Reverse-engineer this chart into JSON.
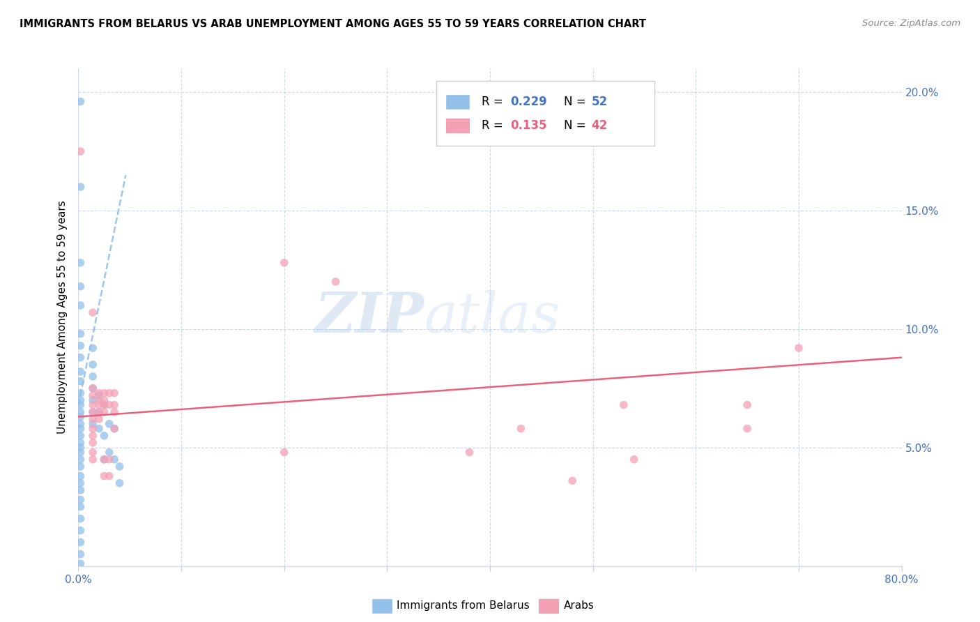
{
  "title": "IMMIGRANTS FROM BELARUS VS ARAB UNEMPLOYMENT AMONG AGES 55 TO 59 YEARS CORRELATION CHART",
  "source": "Source: ZipAtlas.com",
  "ylabel": "Unemployment Among Ages 55 to 59 years",
  "xlim": [
    0.0,
    0.8
  ],
  "ylim": [
    0.0,
    0.21
  ],
  "xticks": [
    0.0,
    0.1,
    0.2,
    0.3,
    0.4,
    0.5,
    0.6,
    0.7,
    0.8
  ],
  "xticklabels": [
    "0.0%",
    "",
    "",
    "",
    "",
    "",
    "",
    "",
    "80.0%"
  ],
  "yticks": [
    0.0,
    0.05,
    0.1,
    0.15,
    0.2
  ],
  "yticklabels": [
    "",
    "5.0%",
    "10.0%",
    "15.0%",
    "20.0%"
  ],
  "legend_r1": "0.229",
  "legend_n1": "52",
  "legend_r2": "0.135",
  "legend_n2": "42",
  "blue_color": "#92C0E8",
  "pink_color": "#F4A0B5",
  "trendline_blue_color": "#92C0E8",
  "trendline_pink_color": "#E8607A",
  "watermark_zip": "ZIP",
  "watermark_atlas": "atlas",
  "blue_scatter": [
    [
      0.002,
      0.196
    ],
    [
      0.002,
      0.16
    ],
    [
      0.002,
      0.128
    ],
    [
      0.002,
      0.118
    ],
    [
      0.002,
      0.11
    ],
    [
      0.002,
      0.098
    ],
    [
      0.002,
      0.093
    ],
    [
      0.002,
      0.088
    ],
    [
      0.002,
      0.082
    ],
    [
      0.002,
      0.078
    ],
    [
      0.002,
      0.073
    ],
    [
      0.002,
      0.07
    ],
    [
      0.002,
      0.068
    ],
    [
      0.002,
      0.065
    ],
    [
      0.002,
      0.063
    ],
    [
      0.002,
      0.06
    ],
    [
      0.002,
      0.058
    ],
    [
      0.002,
      0.055
    ],
    [
      0.002,
      0.052
    ],
    [
      0.002,
      0.05
    ],
    [
      0.002,
      0.048
    ],
    [
      0.002,
      0.045
    ],
    [
      0.002,
      0.042
    ],
    [
      0.002,
      0.038
    ],
    [
      0.002,
      0.035
    ],
    [
      0.002,
      0.032
    ],
    [
      0.002,
      0.028
    ],
    [
      0.002,
      0.025
    ],
    [
      0.002,
      0.02
    ],
    [
      0.002,
      0.015
    ],
    [
      0.002,
      0.01
    ],
    [
      0.002,
      0.005
    ],
    [
      0.002,
      0.001
    ],
    [
      0.014,
      0.092
    ],
    [
      0.014,
      0.085
    ],
    [
      0.014,
      0.08
    ],
    [
      0.014,
      0.075
    ],
    [
      0.014,
      0.07
    ],
    [
      0.014,
      0.065
    ],
    [
      0.014,
      0.06
    ],
    [
      0.02,
      0.072
    ],
    [
      0.02,
      0.065
    ],
    [
      0.02,
      0.058
    ],
    [
      0.025,
      0.068
    ],
    [
      0.025,
      0.055
    ],
    [
      0.025,
      0.045
    ],
    [
      0.03,
      0.06
    ],
    [
      0.03,
      0.048
    ],
    [
      0.035,
      0.058
    ],
    [
      0.035,
      0.045
    ],
    [
      0.04,
      0.042
    ],
    [
      0.04,
      0.035
    ]
  ],
  "pink_scatter": [
    [
      0.002,
      0.175
    ],
    [
      0.014,
      0.107
    ],
    [
      0.014,
      0.075
    ],
    [
      0.014,
      0.072
    ],
    [
      0.014,
      0.068
    ],
    [
      0.014,
      0.065
    ],
    [
      0.014,
      0.062
    ],
    [
      0.014,
      0.058
    ],
    [
      0.014,
      0.055
    ],
    [
      0.014,
      0.052
    ],
    [
      0.014,
      0.048
    ],
    [
      0.014,
      0.045
    ],
    [
      0.02,
      0.073
    ],
    [
      0.02,
      0.07
    ],
    [
      0.02,
      0.068
    ],
    [
      0.02,
      0.065
    ],
    [
      0.02,
      0.062
    ],
    [
      0.025,
      0.073
    ],
    [
      0.025,
      0.07
    ],
    [
      0.025,
      0.068
    ],
    [
      0.025,
      0.065
    ],
    [
      0.025,
      0.045
    ],
    [
      0.025,
      0.038
    ],
    [
      0.03,
      0.073
    ],
    [
      0.03,
      0.068
    ],
    [
      0.03,
      0.045
    ],
    [
      0.03,
      0.038
    ],
    [
      0.035,
      0.073
    ],
    [
      0.035,
      0.068
    ],
    [
      0.035,
      0.065
    ],
    [
      0.035,
      0.058
    ],
    [
      0.2,
      0.128
    ],
    [
      0.2,
      0.048
    ],
    [
      0.25,
      0.12
    ],
    [
      0.38,
      0.048
    ],
    [
      0.43,
      0.058
    ],
    [
      0.48,
      0.036
    ],
    [
      0.53,
      0.068
    ],
    [
      0.54,
      0.045
    ],
    [
      0.65,
      0.068
    ],
    [
      0.65,
      0.058
    ],
    [
      0.7,
      0.092
    ]
  ],
  "blue_trendline_x": [
    0.0,
    0.046
  ],
  "blue_trendline_y": [
    0.068,
    0.165
  ],
  "pink_trendline_x": [
    0.0,
    0.8
  ],
  "pink_trendline_y": [
    0.063,
    0.088
  ]
}
